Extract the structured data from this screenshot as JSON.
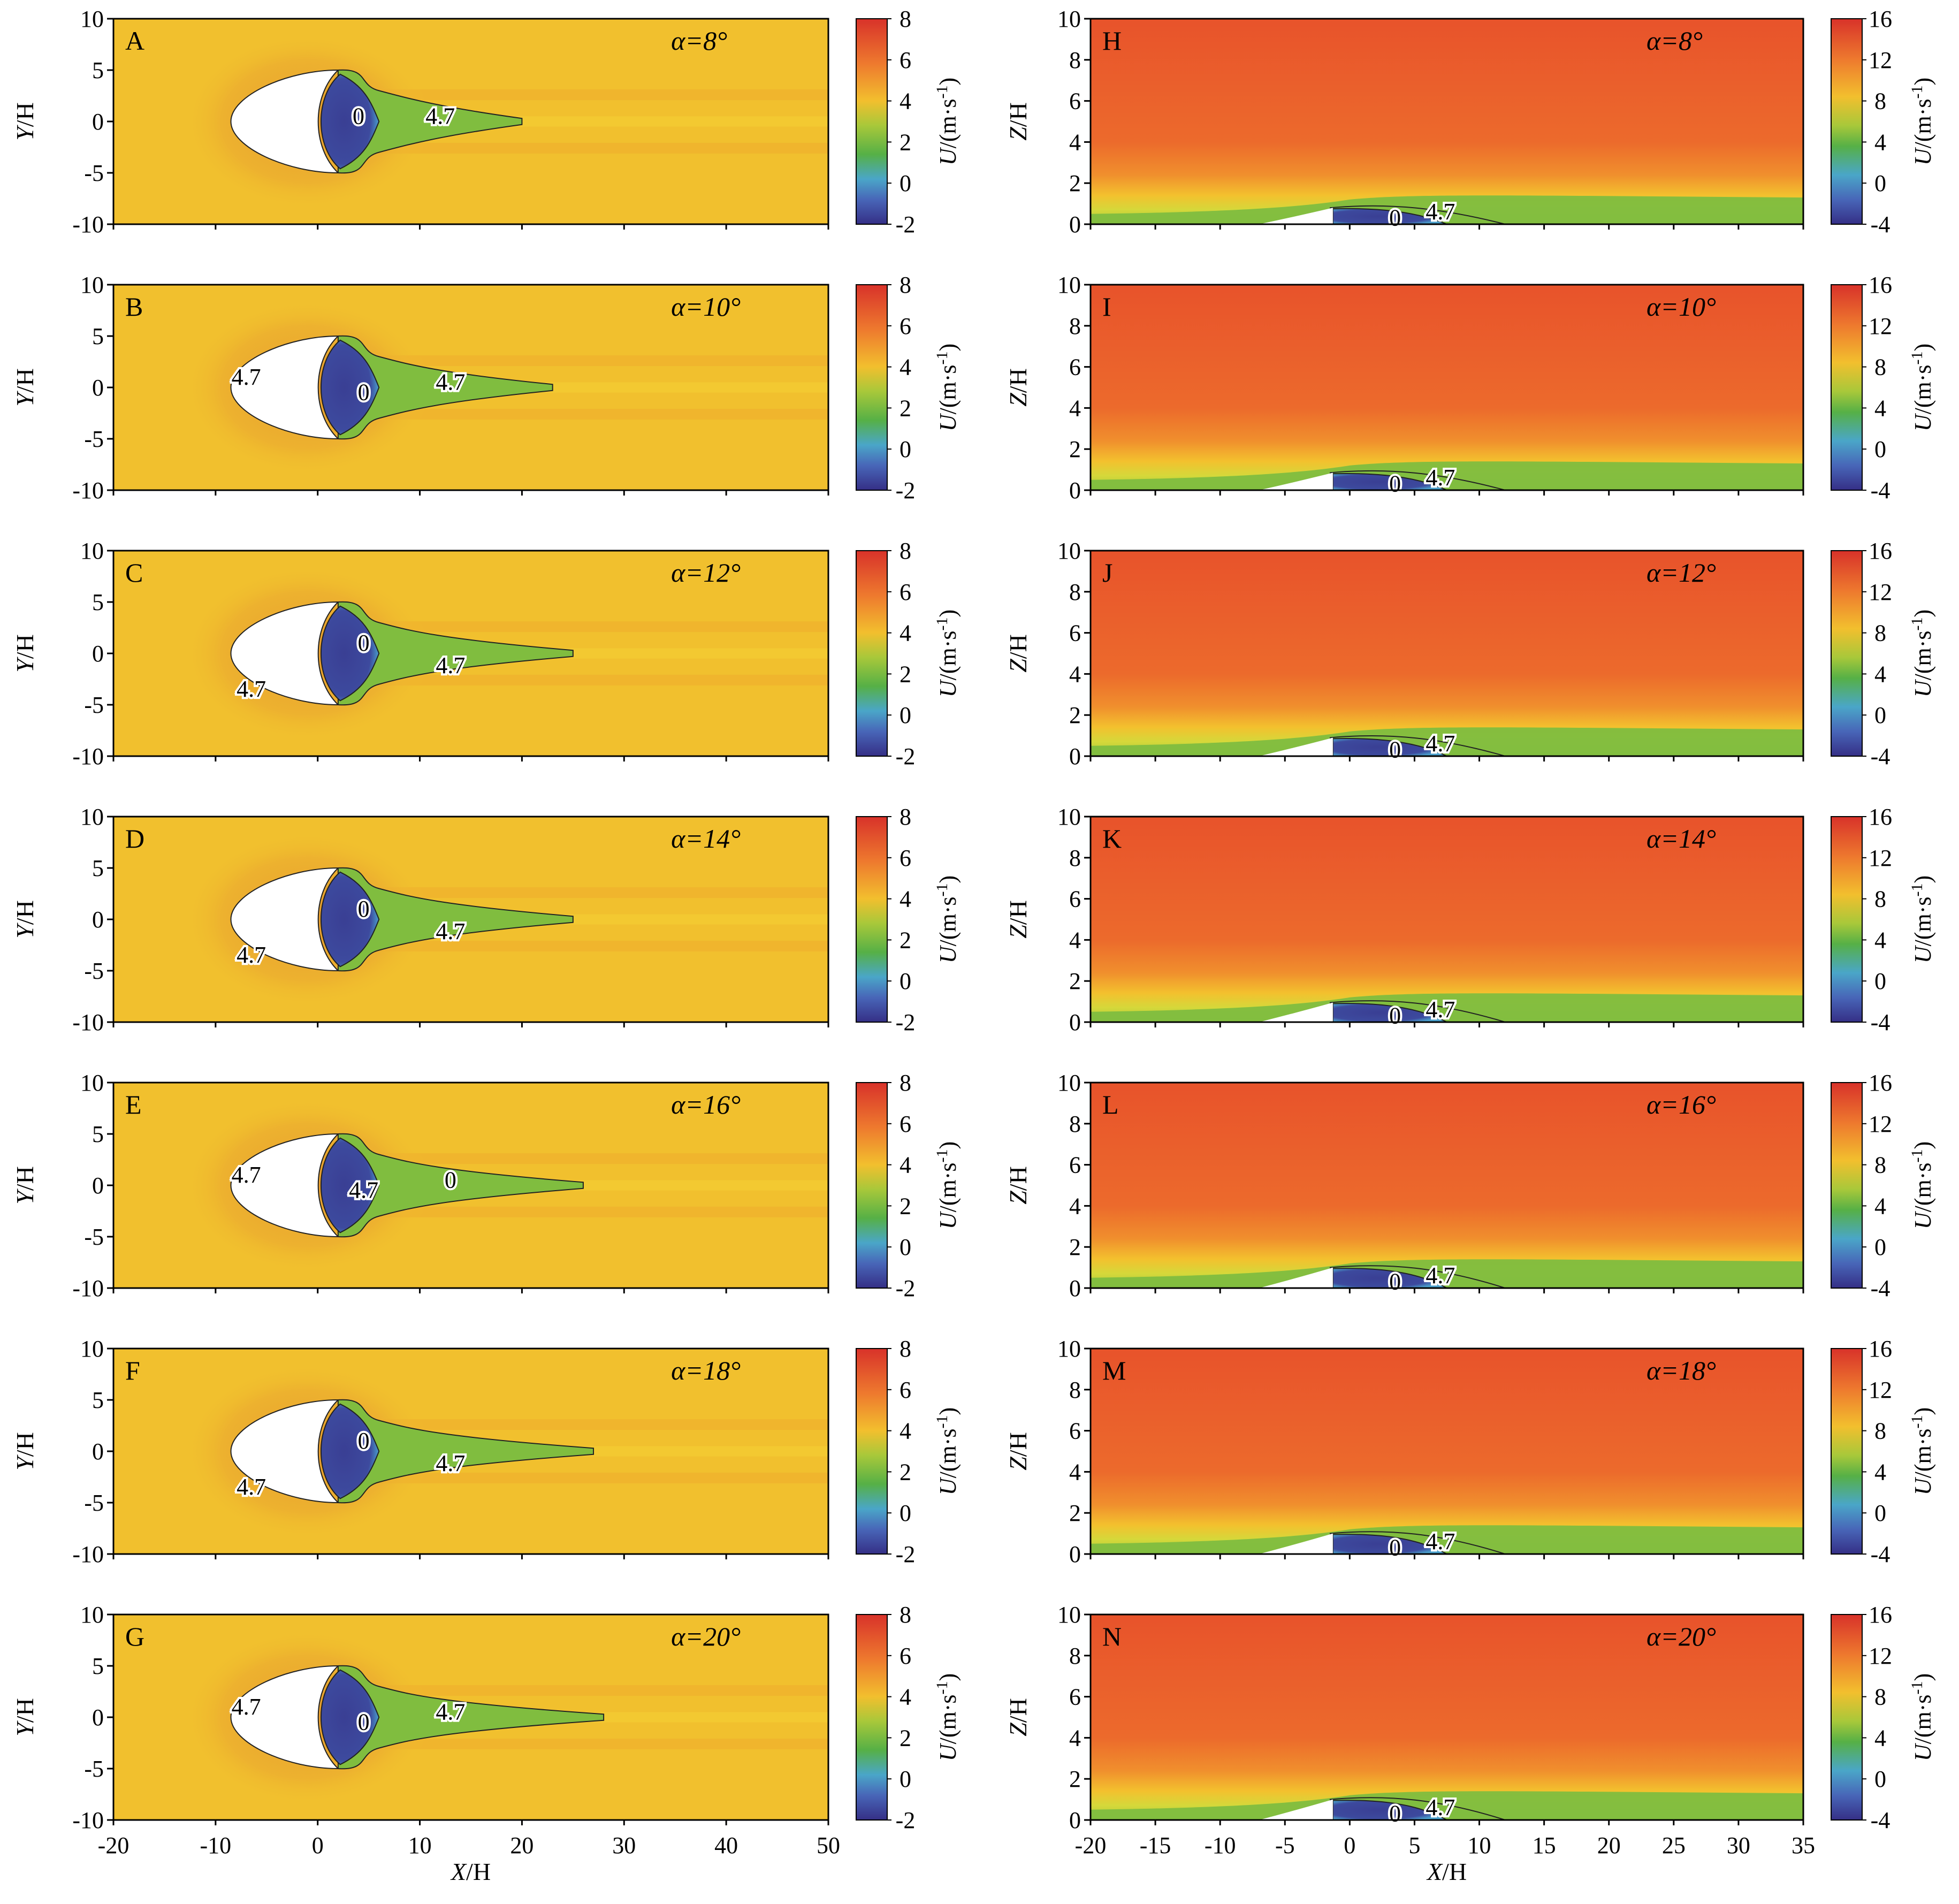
{
  "figure": {
    "colors": {
      "background": "#f1c02e",
      "inner_halo": "#e59c2e",
      "wake_green": "#80bd3f",
      "recirc_blue": "#3d4a9e",
      "upper_orange": "#e85a2c",
      "contour_line": "#222222",
      "body_fill": "#ffffff"
    }
  },
  "chart_data": [
    {
      "panel": "A",
      "type": "heatmap",
      "view": "plan",
      "alpha": "α=8°",
      "xlabel": "",
      "ylabel_var": "Y",
      "ylabel_unit": "/H",
      "xlim": [
        -20,
        50
      ],
      "ylim": [
        -10,
        10
      ],
      "xticks": [
        -20,
        -10,
        0,
        10,
        20,
        30,
        40,
        50
      ],
      "yticks": [
        "10",
        "5",
        "0",
        "-5",
        "-10"
      ],
      "colorbar": {
        "ticks": [
          "8",
          "6",
          "4",
          "2",
          "0",
          "-2"
        ],
        "range": [
          -2,
          8
        ],
        "label_var": "U",
        "label_unit": "/(m·s",
        "label_exp": "-1",
        "label_close": ")"
      },
      "contour_labels": [
        "0",
        "4.7"
      ],
      "contours": [
        0,
        4.7
      ],
      "wake_end": 20
    },
    {
      "panel": "B",
      "type": "heatmap",
      "view": "plan",
      "alpha": "α=10°",
      "xlabel": "",
      "ylabel_var": "Y",
      "ylabel_unit": "/H",
      "xlim": [
        -20,
        50
      ],
      "ylim": [
        -10,
        10
      ],
      "xticks": [
        -20,
        -10,
        0,
        10,
        20,
        30,
        40,
        50
      ],
      "yticks": [
        "10",
        "5",
        "0",
        "-5",
        "-10"
      ],
      "colorbar": {
        "ticks": [
          "8",
          "6",
          "4",
          "2",
          "0",
          "-2"
        ],
        "range": [
          -2,
          8
        ],
        "label_var": "U",
        "label_unit": "/(m·s",
        "label_exp": "-1",
        "label_close": ")"
      },
      "contour_labels": [
        "4.7",
        "0",
        "4.7"
      ],
      "contours": [
        0,
        4.7
      ],
      "wake_end": 23
    },
    {
      "panel": "C",
      "type": "heatmap",
      "view": "plan",
      "alpha": "α=12°",
      "xlabel": "",
      "ylabel_var": "Y",
      "ylabel_unit": "/H",
      "xlim": [
        -20,
        50
      ],
      "ylim": [
        -10,
        10
      ],
      "xticks": [
        -20,
        -10,
        0,
        10,
        20,
        30,
        40,
        50
      ],
      "yticks": [
        "10",
        "5",
        "0",
        "-5",
        "-10"
      ],
      "colorbar": {
        "ticks": [
          "8",
          "6",
          "4",
          "2",
          "0",
          "-2"
        ],
        "range": [
          -2,
          8
        ],
        "label_var": "U",
        "label_unit": "/(m·s",
        "label_exp": "-1",
        "label_close": ")"
      },
      "contour_labels": [
        "0",
        "4.7",
        "4.7"
      ],
      "contours": [
        0,
        4.7
      ],
      "wake_end": 25
    },
    {
      "panel": "D",
      "type": "heatmap",
      "view": "plan",
      "alpha": "α=14°",
      "xlabel": "",
      "ylabel_var": "Y",
      "ylabel_unit": "/H",
      "xlim": [
        -20,
        50
      ],
      "ylim": [
        -10,
        10
      ],
      "xticks": [
        -20,
        -10,
        0,
        10,
        20,
        30,
        40,
        50
      ],
      "yticks": [
        "10",
        "5",
        "0",
        "-5",
        "-10"
      ],
      "colorbar": {
        "ticks": [
          "8",
          "6",
          "4",
          "2",
          "0",
          "-2"
        ],
        "range": [
          -2,
          8
        ],
        "label_var": "U",
        "label_unit": "/(m·s",
        "label_exp": "-1",
        "label_close": ")"
      },
      "contour_labels": [
        "0",
        "4.7",
        "4.7"
      ],
      "contours": [
        0,
        4.7
      ],
      "wake_end": 25
    },
    {
      "panel": "E",
      "type": "heatmap",
      "view": "plan",
      "alpha": "α=16°",
      "xlabel": "",
      "ylabel_var": "Y",
      "ylabel_unit": "/H",
      "xlim": [
        -20,
        50
      ],
      "ylim": [
        -10,
        10
      ],
      "xticks": [
        -20,
        -10,
        0,
        10,
        20,
        30,
        40,
        50
      ],
      "yticks": [
        "10",
        "5",
        "0",
        "-5",
        "-10"
      ],
      "colorbar": {
        "ticks": [
          "8",
          "6",
          "4",
          "2",
          "0",
          "-2"
        ],
        "range": [
          -2,
          8
        ],
        "label_var": "U",
        "label_unit": "/(m·s",
        "label_exp": "-1",
        "label_close": ")"
      },
      "contour_labels": [
        "4.7",
        "4.7",
        "0"
      ],
      "contours": [
        0,
        4.7
      ],
      "wake_end": 26
    },
    {
      "panel": "F",
      "type": "heatmap",
      "view": "plan",
      "alpha": "α=18°",
      "xlabel": "",
      "ylabel_var": "Y",
      "ylabel_unit": "/H",
      "xlim": [
        -20,
        50
      ],
      "ylim": [
        -10,
        10
      ],
      "xticks": [
        -20,
        -10,
        0,
        10,
        20,
        30,
        40,
        50
      ],
      "yticks": [
        "10",
        "5",
        "0",
        "-5",
        "-10"
      ],
      "colorbar": {
        "ticks": [
          "8",
          "6",
          "4",
          "2",
          "0",
          "-2"
        ],
        "range": [
          -2,
          8
        ],
        "label_var": "U",
        "label_unit": "/(m·s",
        "label_exp": "-1",
        "label_close": ")"
      },
      "contour_labels": [
        "0",
        "4.7",
        "4.7"
      ],
      "contours": [
        0,
        4.7
      ],
      "wake_end": 27
    },
    {
      "panel": "G",
      "type": "heatmap",
      "view": "plan",
      "alpha": "α=20°",
      "xlabel_var": "X",
      "xlabel_unit": "/H",
      "ylabel_var": "Y",
      "ylabel_unit": "/H",
      "xlim": [
        -20,
        50
      ],
      "ylim": [
        -10,
        10
      ],
      "xticks": [
        -20,
        -10,
        0,
        10,
        20,
        30,
        40,
        50
      ],
      "yticks": [
        "10",
        "5",
        "0",
        "-5",
        "-10"
      ],
      "colorbar": {
        "ticks": [
          "8",
          "6",
          "4",
          "2",
          "0",
          "-2"
        ],
        "range": [
          -2,
          8
        ],
        "label_var": "U",
        "label_unit": "/(m·s",
        "label_exp": "-1",
        "label_close": ")"
      },
      "contour_labels": [
        "4.7",
        "0",
        "4.7"
      ],
      "contours": [
        0,
        4.7
      ],
      "wake_end": 28
    },
    {
      "panel": "H",
      "type": "heatmap",
      "view": "side",
      "alpha": "α=8°",
      "xlabel": "",
      "ylabel_var": "Z",
      "ylabel_unit": "/H",
      "xlim": [
        -20,
        35
      ],
      "ylim": [
        0,
        10
      ],
      "xticks": [
        -20,
        -15,
        -10,
        -5,
        0,
        5,
        10,
        15,
        20,
        25,
        30,
        35
      ],
      "yticks": [
        "10",
        "8",
        "6",
        "4",
        "2",
        "0"
      ],
      "colorbar": {
        "ticks": [
          "16",
          "12",
          "8",
          "4",
          "0",
          "-4"
        ],
        "range": [
          -4,
          16
        ],
        "label_var": "U",
        "label_unit": "/(m·s",
        "label_exp": "-1",
        "label_close": ")"
      },
      "contour_labels": [
        "0",
        "4.7"
      ],
      "contours": [
        0,
        4.7
      ],
      "dune_height": 0.8
    },
    {
      "panel": "I",
      "type": "heatmap",
      "view": "side",
      "alpha": "α=10°",
      "xlabel": "",
      "ylabel_var": "Z",
      "ylabel_unit": "/H",
      "xlim": [
        -20,
        35
      ],
      "ylim": [
        0,
        10
      ],
      "xticks": [
        -20,
        -15,
        -10,
        -5,
        0,
        5,
        10,
        15,
        20,
        25,
        30,
        35
      ],
      "yticks": [
        "10",
        "8",
        "6",
        "4",
        "2",
        "0"
      ],
      "colorbar": {
        "ticks": [
          "16",
          "12",
          "8",
          "4",
          "0",
          "-4"
        ],
        "range": [
          -4,
          16
        ],
        "label_var": "U",
        "label_unit": "/(m·s",
        "label_exp": "-1",
        "label_close": ")"
      },
      "contour_labels": [
        "0",
        "4.7"
      ],
      "contours": [
        0,
        4.7
      ],
      "dune_height": 0.85
    },
    {
      "panel": "J",
      "type": "heatmap",
      "view": "side",
      "alpha": "α=12°",
      "xlabel": "",
      "ylabel_var": "Z",
      "ylabel_unit": "/H",
      "xlim": [
        -20,
        35
      ],
      "ylim": [
        0,
        10
      ],
      "xticks": [
        -20,
        -15,
        -10,
        -5,
        0,
        5,
        10,
        15,
        20,
        25,
        30,
        35
      ],
      "yticks": [
        "10",
        "8",
        "6",
        "4",
        "2",
        "0"
      ],
      "colorbar": {
        "ticks": [
          "16",
          "12",
          "8",
          "4",
          "0",
          "-4"
        ],
        "range": [
          -4,
          16
        ],
        "label_var": "U",
        "label_unit": "/(m·s",
        "label_exp": "-1",
        "label_close": ")"
      },
      "contour_labels": [
        "0",
        "4.7"
      ],
      "contours": [
        0,
        4.7
      ],
      "dune_height": 0.9
    },
    {
      "panel": "K",
      "type": "heatmap",
      "view": "side",
      "alpha": "α=14°",
      "xlabel": "",
      "ylabel_var": "Z",
      "ylabel_unit": "/H",
      "xlim": [
        -20,
        35
      ],
      "ylim": [
        0,
        10
      ],
      "xticks": [
        -20,
        -15,
        -10,
        -5,
        0,
        5,
        10,
        15,
        20,
        25,
        30,
        35
      ],
      "yticks": [
        "10",
        "8",
        "6",
        "4",
        "2",
        "0"
      ],
      "colorbar": {
        "ticks": [
          "16",
          "12",
          "8",
          "4",
          "0",
          "-4"
        ],
        "range": [
          -4,
          16
        ],
        "label_var": "U",
        "label_unit": "/(m·s",
        "label_exp": "-1",
        "label_close": ")"
      },
      "contour_labels": [
        "0",
        "4.7"
      ],
      "contours": [
        0,
        4.7
      ],
      "dune_height": 0.95
    },
    {
      "panel": "L",
      "type": "heatmap",
      "view": "side",
      "alpha": "α=16°",
      "xlabel": "",
      "ylabel_var": "Z",
      "ylabel_unit": "/H",
      "xlim": [
        -20,
        35
      ],
      "ylim": [
        0,
        10
      ],
      "xticks": [
        -20,
        -15,
        -10,
        -5,
        0,
        5,
        10,
        15,
        20,
        25,
        30,
        35
      ],
      "yticks": [
        "10",
        "8",
        "6",
        "4",
        "2",
        "0"
      ],
      "colorbar": {
        "ticks": [
          "16",
          "12",
          "8",
          "4",
          "0",
          "-4"
        ],
        "range": [
          -4,
          16
        ],
        "label_var": "U",
        "label_unit": "/(m·s",
        "label_exp": "-1",
        "label_close": ")"
      },
      "contour_labels": [
        "0",
        "4.7"
      ],
      "contours": [
        0,
        4.7
      ],
      "dune_height": 1.0
    },
    {
      "panel": "M",
      "type": "heatmap",
      "view": "side",
      "alpha": "α=18°",
      "xlabel": "",
      "ylabel_var": "Z",
      "ylabel_unit": "/H",
      "xlim": [
        -20,
        35
      ],
      "ylim": [
        0,
        10
      ],
      "xticks": [
        -20,
        -15,
        -10,
        -5,
        0,
        5,
        10,
        15,
        20,
        25,
        30,
        35
      ],
      "yticks": [
        "10",
        "8",
        "6",
        "4",
        "2",
        "0"
      ],
      "colorbar": {
        "ticks": [
          "16",
          "12",
          "8",
          "4",
          "0",
          "-4"
        ],
        "range": [
          -4,
          16
        ],
        "label_var": "U",
        "label_unit": "/(m·s",
        "label_exp": "-1",
        "label_close": ")"
      },
      "contour_labels": [
        "0",
        "4.7"
      ],
      "contours": [
        0,
        4.7
      ],
      "dune_height": 1.0
    },
    {
      "panel": "N",
      "type": "heatmap",
      "view": "side",
      "alpha": "α=20°",
      "xlabel_var": "X",
      "xlabel_unit": "/H",
      "ylabel_var": "Z",
      "ylabel_unit": "/H",
      "xlim": [
        -20,
        35
      ],
      "ylim": [
        0,
        10
      ],
      "xticks": [
        -20,
        -15,
        -10,
        -5,
        0,
        5,
        10,
        15,
        20,
        25,
        30,
        35
      ],
      "yticks": [
        "10",
        "8",
        "6",
        "4",
        "2",
        "0"
      ],
      "colorbar": {
        "ticks": [
          "16",
          "12",
          "8",
          "4",
          "0",
          "-4"
        ],
        "range": [
          -4,
          16
        ],
        "label_var": "U",
        "label_unit": "/(m·s",
        "label_exp": "-1",
        "label_close": ")"
      },
      "contour_labels": [
        "0",
        "4.7"
      ],
      "contours": [
        0,
        4.7
      ],
      "dune_height": 1.0
    }
  ]
}
